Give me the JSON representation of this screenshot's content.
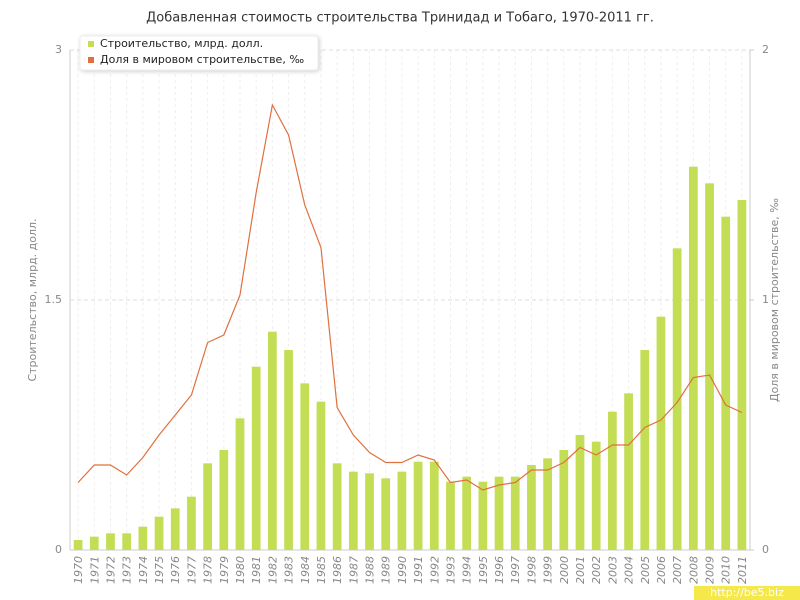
{
  "chart_data": {
    "type": "bar",
    "title": "Добавленная стоимость строительства Тринидад и Тобаго, 1970-2011 гг.",
    "y_label": "Строительство, млрд. долл.",
    "y2_label": "Доля в мировом строительстве, ‰",
    "watermark": "http://be5.biz",
    "categories": [
      "1970",
      "1971",
      "1972",
      "1973",
      "1974",
      "1975",
      "1976",
      "1977",
      "1978",
      "1979",
      "1980",
      "1981",
      "1982",
      "1983",
      "1984",
      "1985",
      "1986",
      "1987",
      "1988",
      "1989",
      "1990",
      "1991",
      "1992",
      "1993",
      "1994",
      "1995",
      "1996",
      "1997",
      "1998",
      "1999",
      "2000",
      "2001",
      "2002",
      "2003",
      "2004",
      "2005",
      "2006",
      "2007",
      "2008",
      "2009",
      "2010",
      "2011"
    ],
    "series": [
      {
        "name": "Строительство, млрд. долл.",
        "color": "#c3de55",
        "type": "bar",
        "values": [
          0.06,
          0.08,
          0.1,
          0.1,
          0.14,
          0.2,
          0.25,
          0.32,
          0.52,
          0.6,
          0.79,
          1.1,
          1.31,
          1.2,
          1.0,
          0.89,
          0.52,
          0.47,
          0.46,
          0.43,
          0.47,
          0.53,
          0.53,
          0.41,
          0.44,
          0.41,
          0.44,
          0.44,
          0.51,
          0.55,
          0.6,
          0.69,
          0.65,
          0.83,
          0.94,
          1.2,
          1.4,
          1.81,
          2.3,
          2.2,
          2.0,
          2.1
        ]
      },
      {
        "name": "Доля в мировом строительстве, ‰",
        "color": "#e0703f",
        "type": "line",
        "axis": "y2",
        "values": [
          0.27,
          0.34,
          0.34,
          0.3,
          0.37,
          0.46,
          0.54,
          0.62,
          0.83,
          0.86,
          1.02,
          1.43,
          1.78,
          1.66,
          1.38,
          1.21,
          0.57,
          0.46,
          0.39,
          0.35,
          0.35,
          0.38,
          0.36,
          0.27,
          0.28,
          0.24,
          0.26,
          0.27,
          0.32,
          0.32,
          0.35,
          0.41,
          0.38,
          0.42,
          0.42,
          0.49,
          0.52,
          0.59,
          0.69,
          0.7,
          0.58,
          0.55
        ]
      }
    ],
    "ylim": [
      0,
      3
    ],
    "yticks": [
      0,
      1.5,
      3
    ],
    "y2lim": [
      0,
      2
    ],
    "y2ticks": [
      0,
      1,
      2
    ],
    "grid": true,
    "legend": "top-left"
  }
}
